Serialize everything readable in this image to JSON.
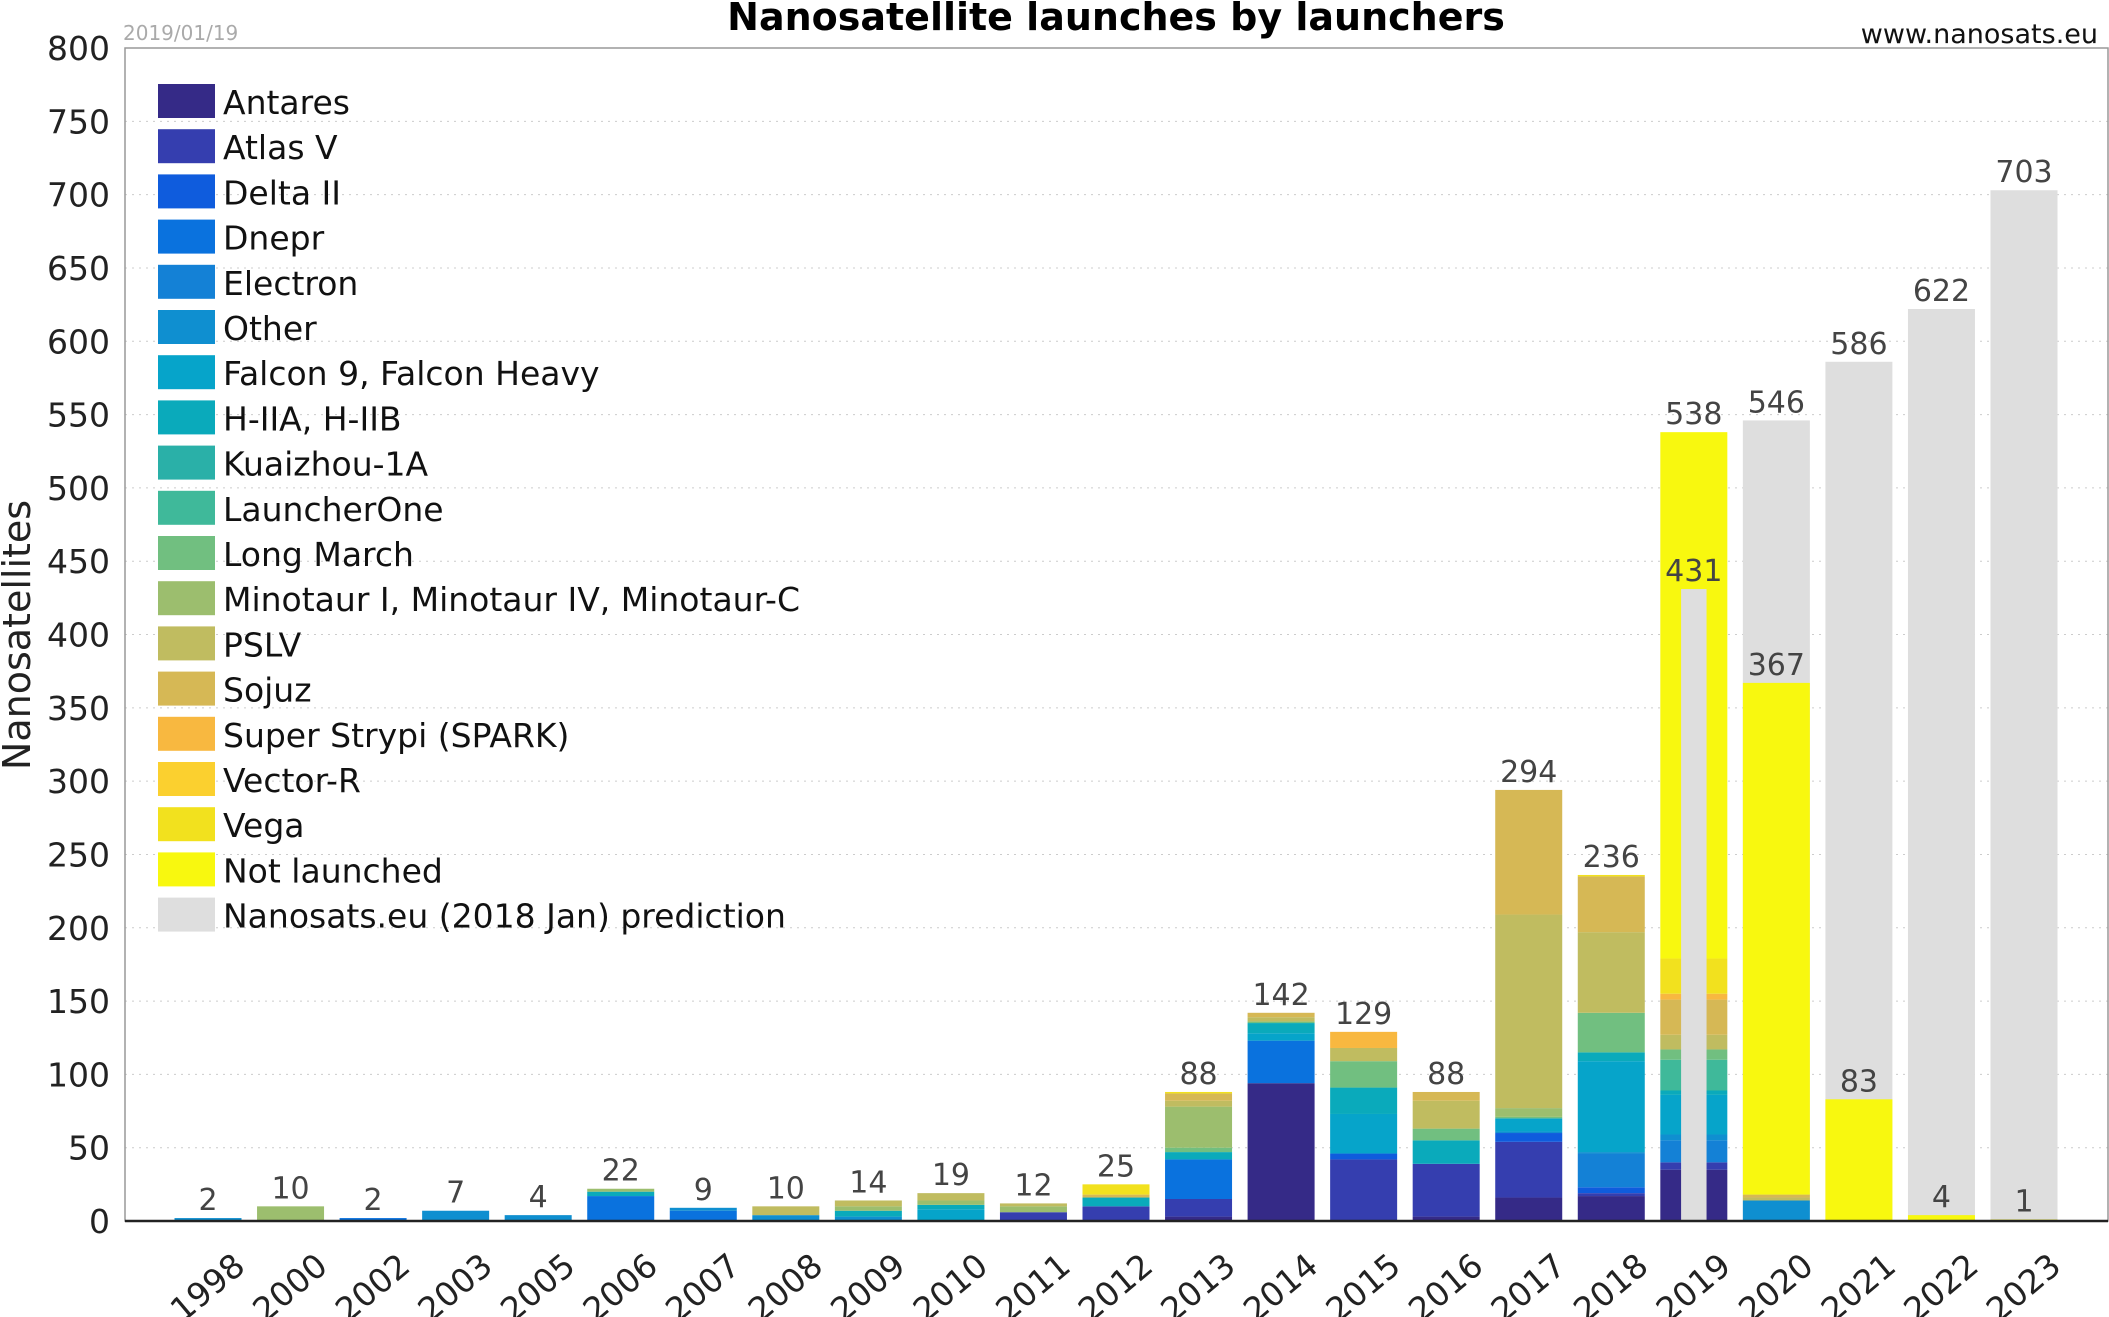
{
  "chart_data": {
    "type": "bar",
    "stacked": true,
    "title": "Nanosatellite launches by launchers",
    "date": "2019/01/19",
    "source": "www.nanosats.eu",
    "xlabel": "",
    "ylabel": "Nanosatellites",
    "ylim": [
      0,
      800
    ],
    "yticks": [
      0,
      50,
      100,
      150,
      200,
      250,
      300,
      350,
      400,
      450,
      500,
      550,
      600,
      650,
      700,
      750,
      800
    ],
    "grid": true,
    "legend_position": "top-left",
    "categories": [
      "1998",
      "2000",
      "2002",
      "2003",
      "2005",
      "2006",
      "2007",
      "2008",
      "2009",
      "2010",
      "2011",
      "2012",
      "2013",
      "2014",
      "2015",
      "2016",
      "2017",
      "2018",
      "2019",
      "2020",
      "2021",
      "2022",
      "2023"
    ],
    "series": [
      {
        "name": "Antares",
        "color": "#352a87",
        "values": [
          0,
          0,
          0,
          0,
          0,
          0,
          0,
          0,
          0,
          0,
          0,
          0,
          3,
          94,
          0,
          3,
          16,
          17,
          35,
          0,
          0,
          0,
          0
        ]
      },
      {
        "name": "Atlas V",
        "color": "#353eaf",
        "values": [
          0,
          0,
          0,
          0,
          0,
          0,
          0,
          0,
          0,
          0,
          6,
          10,
          12,
          0,
          42,
          36,
          38,
          2,
          5,
          0,
          0,
          0,
          0
        ]
      },
      {
        "name": "Delta II",
        "color": "#0f5cdd",
        "values": [
          0,
          0,
          0,
          0,
          0,
          0,
          0,
          0,
          0,
          0,
          0,
          0,
          0,
          0,
          4,
          0,
          6,
          4,
          0,
          0,
          0,
          0,
          0
        ]
      },
      {
        "name": "Dnepr",
        "color": "#0a72de",
        "values": [
          0,
          0,
          2,
          0,
          0,
          17,
          7,
          0,
          0,
          0,
          0,
          0,
          27,
          29,
          0,
          0,
          0,
          0,
          0,
          0,
          0,
          0,
          0
        ]
      },
      {
        "name": "Electron",
        "color": "#1481d6",
        "values": [
          0,
          0,
          0,
          0,
          0,
          0,
          0,
          0,
          0,
          0,
          0,
          0,
          0,
          0,
          0,
          0,
          0,
          23,
          15,
          0,
          0,
          0,
          0
        ]
      },
      {
        "name": "Other",
        "color": "#0f8fd0",
        "values": [
          2,
          0,
          0,
          7,
          4,
          0,
          2,
          4,
          3,
          0,
          0,
          0,
          0,
          0,
          0,
          0,
          1,
          1,
          4,
          14,
          0,
          0,
          0
        ]
      },
      {
        "name": "Falcon 9, Falcon Heavy",
        "color": "#06a4ca",
        "values": [
          0,
          0,
          0,
          0,
          0,
          0,
          0,
          0,
          0,
          8,
          0,
          0,
          0,
          5,
          27,
          0,
          9,
          62,
          27,
          0,
          0,
          0,
          0
        ]
      },
      {
        "name": "H-IIA, H-IIB",
        "color": "#0aaabb",
        "values": [
          0,
          0,
          0,
          0,
          0,
          3,
          0,
          0,
          4,
          3,
          0,
          6,
          5,
          7,
          18,
          16,
          0,
          6,
          3,
          0,
          0,
          0,
          0
        ]
      },
      {
        "name": "Kuaizhou-1A",
        "color": "#2ab0a8",
        "values": [
          0,
          0,
          0,
          0,
          0,
          0,
          0,
          0,
          0,
          0,
          0,
          0,
          0,
          0,
          0,
          0,
          0,
          0,
          0,
          0,
          0,
          0,
          0
        ]
      },
      {
        "name": "LauncherOne",
        "color": "#3fb99a",
        "values": [
          0,
          0,
          0,
          0,
          0,
          0,
          0,
          0,
          0,
          0,
          0,
          0,
          0,
          0,
          0,
          0,
          0,
          0,
          21,
          0,
          0,
          0,
          0
        ]
      },
      {
        "name": "Long March",
        "color": "#71bf80",
        "values": [
          0,
          0,
          0,
          0,
          0,
          0,
          0,
          0,
          0,
          0,
          0,
          0,
          3,
          1,
          18,
          8,
          1,
          27,
          7,
          0,
          0,
          0,
          0
        ]
      },
      {
        "name": "Minotaur I, Minotaur IV, Minotaur-C",
        "color": "#9cbe6e",
        "values": [
          0,
          10,
          0,
          0,
          0,
          2,
          0,
          0,
          3,
          3,
          4,
          0,
          28,
          0,
          0,
          0,
          6,
          0,
          0,
          0,
          0,
          0,
          0
        ]
      },
      {
        "name": "PSLV",
        "color": "#c0bc60",
        "values": [
          0,
          0,
          0,
          0,
          0,
          0,
          0,
          6,
          4,
          5,
          2,
          0,
          4,
          3,
          9,
          19,
          132,
          55,
          10,
          2,
          0,
          0,
          0
        ]
      },
      {
        "name": "Sojuz",
        "color": "#d6b855",
        "values": [
          0,
          0,
          0,
          0,
          0,
          0,
          0,
          0,
          0,
          0,
          0,
          2,
          5,
          3,
          0,
          6,
          85,
          38,
          24,
          2,
          0,
          0,
          0
        ]
      },
      {
        "name": "Super Strypi (SPARK)",
        "color": "#f8b840",
        "values": [
          0,
          0,
          0,
          0,
          0,
          0,
          0,
          0,
          0,
          0,
          0,
          0,
          0,
          0,
          11,
          0,
          0,
          0,
          4,
          0,
          0,
          0,
          0
        ]
      },
      {
        "name": "Vector-R",
        "color": "#fbd02f",
        "values": [
          0,
          0,
          0,
          0,
          0,
          0,
          0,
          0,
          0,
          0,
          0,
          0,
          0,
          0,
          0,
          0,
          0,
          0,
          0,
          0,
          0,
          0,
          0
        ]
      },
      {
        "name": "Vega",
        "color": "#f2e11e",
        "values": [
          0,
          0,
          0,
          0,
          0,
          0,
          0,
          0,
          0,
          0,
          0,
          7,
          1,
          0,
          0,
          0,
          0,
          1,
          24,
          0,
          0,
          0,
          0
        ]
      },
      {
        "name": "Not launched",
        "color": "#f8f80f",
        "values": [
          0,
          0,
          0,
          0,
          0,
          0,
          0,
          0,
          0,
          0,
          0,
          0,
          0,
          0,
          0,
          0,
          0,
          0,
          359,
          349,
          83,
          4,
          1
        ]
      }
    ],
    "prediction": {
      "name": "Nanosats.eu (2018 Jan) prediction",
      "color": "#dedede",
      "values": [
        null,
        null,
        null,
        null,
        null,
        null,
        null,
        null,
        null,
        null,
        null,
        null,
        null,
        null,
        null,
        null,
        null,
        null,
        431,
        546,
        586,
        622,
        703
      ]
    },
    "totals": [
      "2",
      "10",
      "2",
      "7",
      "4",
      "22",
      "9",
      "10",
      "14",
      "19",
      "12",
      "25",
      "88",
      "142",
      "129",
      "88",
      "294",
      "236",
      "538",
      "367",
      "83",
      "4",
      "1"
    ]
  }
}
